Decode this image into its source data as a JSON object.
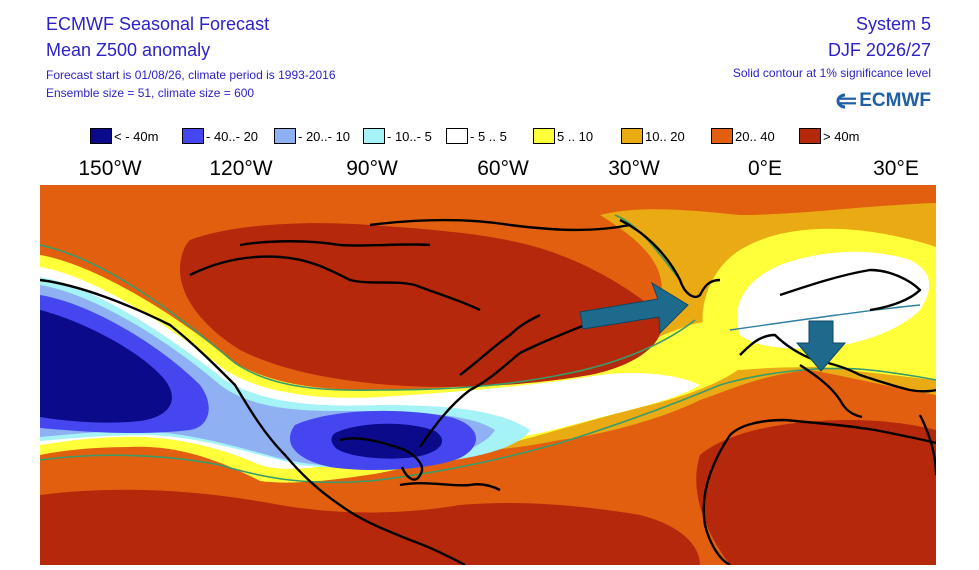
{
  "header": {
    "title": "ECMWF Seasonal Forecast",
    "subtitle": "Mean Z500 anomaly",
    "forecast_info": "Forecast start is 01/08/26, climate period is 1993-2016",
    "ensemble_info": "Ensemble size = 51, climate size = 600",
    "system": "System 5",
    "season": "DJF 2026/27",
    "significance_note": "Solid contour at 1% significance level",
    "logo_text": "ECMWF"
  },
  "legend": [
    {
      "label": "< - 40m",
      "color": "#0a0a8a"
    },
    {
      "label": "- 40..- 20",
      "color": "#4646f0"
    },
    {
      "label": "- 20..- 10",
      "color": "#8fb0f2"
    },
    {
      "label": "- 10..- 5",
      "color": "#a6f3f7"
    },
    {
      "label": "- 5 .. 5",
      "color": "#ffffff"
    },
    {
      "label": "5 .. 10",
      "color": "#ffff3a"
    },
    {
      "label": "10.. 20",
      "color": "#eaaa14"
    },
    {
      "label": "20.. 40",
      "color": "#e25f10"
    },
    {
      "label": "> 40m",
      "color": "#b5280c"
    }
  ],
  "longitude_labels": [
    "150°W",
    "120°W",
    "90°W",
    "60°W",
    "30°W",
    "0°E",
    "30°E"
  ],
  "arrow_color": "#1e6a8c",
  "icons": {
    "logo": "ecmwf-logo-icon",
    "arrow_east": "arrow-east-icon",
    "arrow_south": "arrow-south-icon"
  }
}
